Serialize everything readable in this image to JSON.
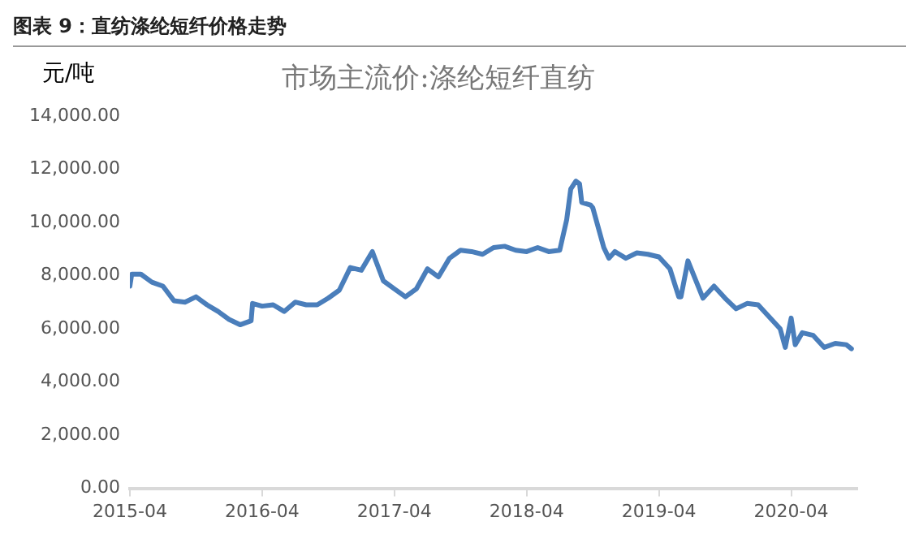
{
  "chart_data": {
    "type": "line",
    "title": "图表 9：直纺涤纶短纤价格走势",
    "subtitle": "市场主流价:涤纶短纤直纺",
    "ylabel": "元/吨",
    "x": [
      "2015-04-01",
      "2015-04-06",
      "2015-05-01",
      "2015-06-01",
      "2015-07-01",
      "2015-08-01",
      "2015-09-01",
      "2015-10-01",
      "2015-11-01",
      "2015-12-01",
      "2016-01-01",
      "2016-02-01",
      "2016-03-01",
      "2016-03-05",
      "2016-04-01",
      "2016-05-01",
      "2016-06-01",
      "2016-07-01",
      "2016-08-01",
      "2016-09-01",
      "2016-10-01",
      "2016-11-01",
      "2016-12-01",
      "2017-01-01",
      "2017-02-01",
      "2017-03-01",
      "2017-04-01",
      "2017-05-01",
      "2017-06-01",
      "2017-07-01",
      "2017-08-01",
      "2017-09-01",
      "2017-10-01",
      "2017-11-01",
      "2017-12-01",
      "2018-01-01",
      "2018-02-01",
      "2018-03-01",
      "2018-04-01",
      "2018-05-01",
      "2018-06-01",
      "2018-07-01",
      "2018-07-20",
      "2018-08-01",
      "2018-08-15",
      "2018-08-25",
      "2018-09-01",
      "2018-09-25",
      "2018-10-01",
      "2018-11-01",
      "2018-11-15",
      "2018-12-01",
      "2019-01-01",
      "2019-02-01",
      "2019-03-01",
      "2019-04-01",
      "2019-05-01",
      "2019-05-25",
      "2019-06-01",
      "2019-06-20",
      "2019-08-01",
      "2019-09-01",
      "2019-10-01",
      "2019-11-01",
      "2019-12-01",
      "2020-01-01",
      "2020-02-01",
      "2020-03-01",
      "2020-03-15",
      "2020-04-01",
      "2020-04-12",
      "2020-05-01",
      "2020-06-01",
      "2020-07-01",
      "2020-08-01",
      "2020-09-01",
      "2020-09-15"
    ],
    "series": [
      {
        "color": "#4a7ebb",
        "values": [
          7600,
          8050,
          8050,
          7750,
          7600,
          7050,
          7000,
          7200,
          6900,
          6650,
          6350,
          6150,
          6300,
          6950,
          6850,
          6900,
          6650,
          7000,
          6900,
          6900,
          7150,
          7450,
          8300,
          8200,
          8900,
          7800,
          7500,
          7200,
          7500,
          8250,
          7950,
          8650,
          8950,
          8900,
          8800,
          9050,
          9100,
          8950,
          8900,
          9050,
          8900,
          8950,
          10100,
          11250,
          11550,
          11450,
          10750,
          10650,
          10550,
          9050,
          8650,
          8900,
          8650,
          8850,
          8800,
          8700,
          8250,
          7200,
          7200,
          8550,
          7150,
          7600,
          7150,
          6750,
          6950,
          6900,
          6450,
          6000,
          5300,
          6400,
          5400,
          5850,
          5750,
          5300,
          5450,
          5400,
          5250
        ]
      }
    ],
    "xlim": [
      "2015-04",
      "2020-10"
    ],
    "xticks": [
      "2015-04",
      "2016-04",
      "2017-04",
      "2018-04",
      "2019-04",
      "2020-04"
    ],
    "ylim": [
      0,
      14000
    ],
    "yticks": [
      {
        "value": 0,
        "label": "0.00"
      },
      {
        "value": 2000,
        "label": "2,000.00"
      },
      {
        "value": 4000,
        "label": "4,000.00"
      },
      {
        "value": 6000,
        "label": "6,000.00"
      },
      {
        "value": 8000,
        "label": "8,000.00"
      },
      {
        "value": 10000,
        "label": "10,000.00"
      },
      {
        "value": 12000,
        "label": "12,000.00"
      },
      {
        "value": 14000,
        "label": "14,000.00"
      }
    ],
    "grid": false,
    "legend": false,
    "marker": "none",
    "line_style": "solid"
  }
}
